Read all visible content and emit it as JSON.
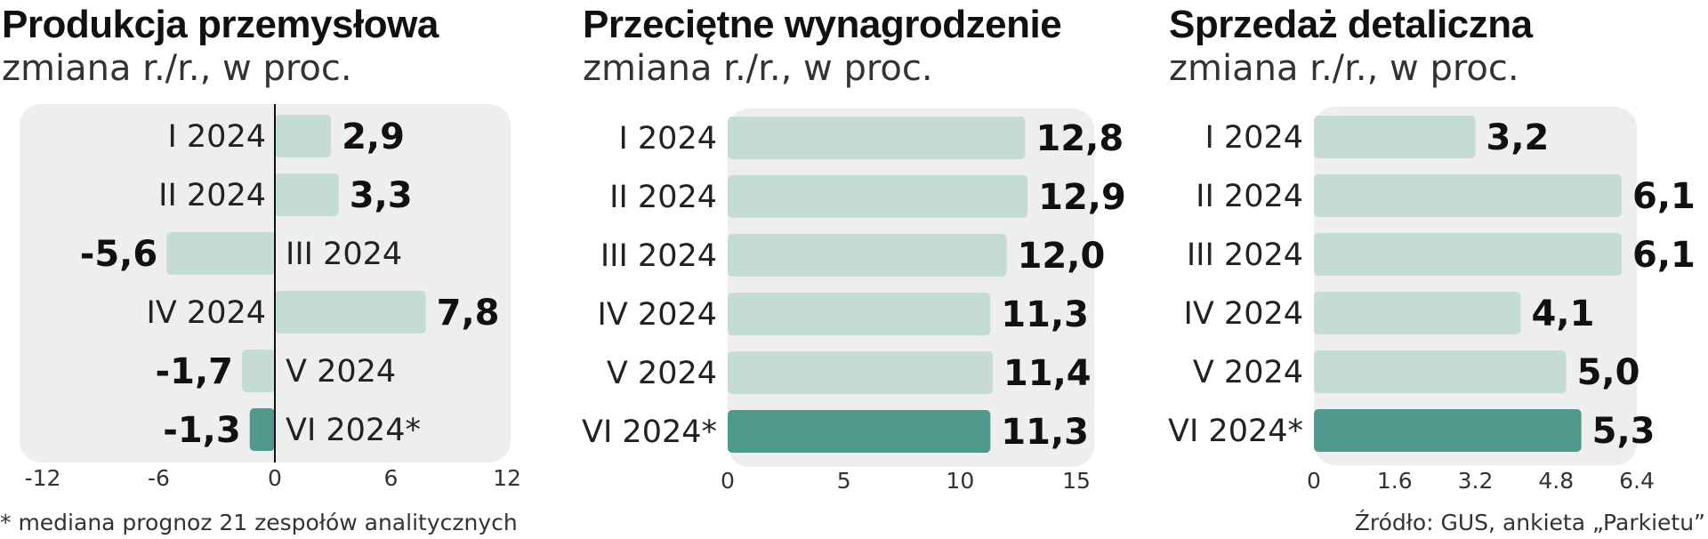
{
  "colors": {
    "panel": "#eeeeee",
    "bar": "#c4dcd3",
    "bar_highlight": "#4f9a8c",
    "axis": "#111111"
  },
  "footer": {
    "note": "* mediana prognoz 21 zespołów analitycznych",
    "source": "Źródło: GUS, ankieta „Parkietu”"
  },
  "chart_data": [
    {
      "type": "bar",
      "orientation": "horizontal",
      "title": "Produkcja przemysłowa",
      "subtitle": "zmiana r./r., w proc.",
      "categories": [
        "I 2024",
        "II 2024",
        "III 2024",
        "IV 2024",
        "V 2024",
        "VI 2024*"
      ],
      "values": [
        2.9,
        3.3,
        -5.6,
        7.8,
        -1.7,
        -1.3
      ],
      "value_labels": [
        "2,9",
        "3,3",
        "-5,6",
        "7,8",
        "-1,7",
        "-1,3"
      ],
      "highlight_index": 5,
      "xlim": [
        -12,
        12
      ],
      "xticks": [
        -12,
        -6,
        0,
        6,
        12
      ],
      "xtick_labels": [
        "-12",
        "-6",
        "0",
        "6",
        "12"
      ]
    },
    {
      "type": "bar",
      "orientation": "horizontal",
      "title": "Przeciętne wynagrodzenie",
      "subtitle": "zmiana r./r., w proc.",
      "categories": [
        "I 2024",
        "II 2024",
        "III 2024",
        "IV 2024",
        "V 2024",
        "VI 2024*"
      ],
      "values": [
        12.8,
        12.9,
        12.0,
        11.3,
        11.4,
        11.3
      ],
      "value_labels": [
        "12,8",
        "12,9",
        "12,0",
        "11,3",
        "11,4",
        "11,3"
      ],
      "highlight_index": 5,
      "xlim": [
        0,
        15
      ],
      "xticks": [
        0,
        5,
        10,
        15
      ],
      "xtick_labels": [
        "0",
        "5",
        "10",
        "15"
      ]
    },
    {
      "type": "bar",
      "orientation": "horizontal",
      "title": "Sprzedaż detaliczna",
      "subtitle": "zmiana r./r., w proc.",
      "categories": [
        "I 2024",
        "II 2024",
        "III 2024",
        "IV 2024",
        "V 2024",
        "VI 2024*"
      ],
      "values": [
        3.2,
        6.1,
        6.1,
        4.1,
        5.0,
        5.3
      ],
      "value_labels": [
        "3,2",
        "6,1",
        "6,1",
        "4,1",
        "5,0",
        "5,3"
      ],
      "highlight_index": 5,
      "xlim": [
        0,
        6.4
      ],
      "xticks": [
        0,
        1.6,
        3.2,
        4.8,
        6.4
      ],
      "xtick_labels": [
        "0",
        "1.6",
        "3.2",
        "4.8",
        "6.4"
      ]
    }
  ]
}
